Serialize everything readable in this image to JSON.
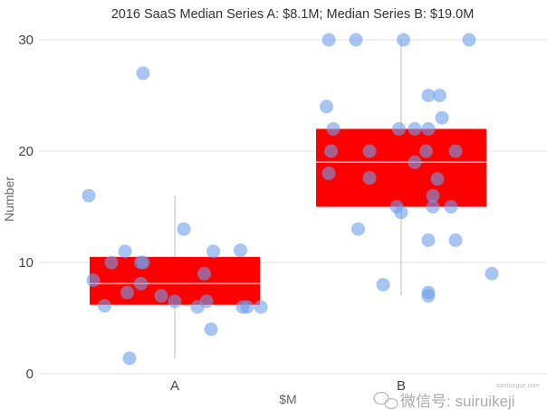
{
  "chart_data": {
    "type": "box",
    "title": "2016 SaaS Median Series A: $8.1M; Median Series B: $19.0M",
    "xlabel": "$M",
    "ylabel": "Number",
    "categories": [
      "A",
      "B"
    ],
    "ylim": [
      0,
      30
    ],
    "yticks": [
      "0",
      "10",
      "20",
      "30"
    ],
    "grid": true,
    "colors": {
      "box": "#ff0000",
      "median": "#f7c4c4",
      "points": "#6d9eeb",
      "whisker": "#c8c8c8",
      "grid": "#e0e0e0"
    },
    "boxes": [
      {
        "category": "A",
        "whisker_low": 1.4,
        "q1": 6.2,
        "median": 8.1,
        "q3": 10.5,
        "whisker_high": 16
      },
      {
        "category": "B",
        "whisker_low": 7,
        "q1": 15,
        "median": 19.0,
        "q3": 22,
        "whisker_high": 30
      }
    ],
    "series": [
      {
        "category": "A",
        "points": [
          [
            -0.38,
            16
          ],
          [
            -0.14,
            27
          ],
          [
            0.04,
            13
          ],
          [
            -0.22,
            11
          ],
          [
            0.17,
            11
          ],
          [
            0.29,
            11.1
          ],
          [
            -0.28,
            10
          ],
          [
            -0.15,
            10
          ],
          [
            -0.14,
            10
          ],
          [
            -0.36,
            8.4
          ],
          [
            -0.15,
            8.1
          ],
          [
            0.13,
            9
          ],
          [
            -0.21,
            7.3
          ],
          [
            -0.06,
            7
          ],
          [
            0.0,
            6.5
          ],
          [
            0.14,
            6.5
          ],
          [
            -0.31,
            6.1
          ],
          [
            0.1,
            6
          ],
          [
            0.3,
            6
          ],
          [
            0.32,
            6
          ],
          [
            0.38,
            6
          ],
          [
            0.16,
            4
          ],
          [
            -0.2,
            1.4
          ]
        ]
      },
      {
        "category": "B",
        "points": [
          [
            -0.32,
            30
          ],
          [
            -0.2,
            30
          ],
          [
            0.01,
            30
          ],
          [
            0.3,
            30
          ],
          [
            0.12,
            25
          ],
          [
            0.17,
            25
          ],
          [
            -0.33,
            24
          ],
          [
            0.18,
            23
          ],
          [
            -0.3,
            22
          ],
          [
            -0.01,
            22
          ],
          [
            0.06,
            22
          ],
          [
            0.12,
            22
          ],
          [
            -0.31,
            20
          ],
          [
            -0.14,
            20
          ],
          [
            0.11,
            20
          ],
          [
            0.24,
            20
          ],
          [
            0.06,
            19
          ],
          [
            -0.32,
            18
          ],
          [
            -0.14,
            17.6
          ],
          [
            0.16,
            17.5
          ],
          [
            0.14,
            16
          ],
          [
            -0.02,
            15
          ],
          [
            0.0,
            14.5
          ],
          [
            0.14,
            15
          ],
          [
            0.22,
            15
          ],
          [
            -0.19,
            13
          ],
          [
            0.12,
            12
          ],
          [
            0.24,
            12
          ],
          [
            0.4,
            9
          ],
          [
            -0.08,
            8
          ],
          [
            0.12,
            7.3
          ],
          [
            0.12,
            7
          ]
        ]
      }
    ]
  },
  "watermark": {
    "text": "微信号: suiruikeji",
    "site": "tomtunguz.com",
    "icon": "wechat-icon"
  }
}
